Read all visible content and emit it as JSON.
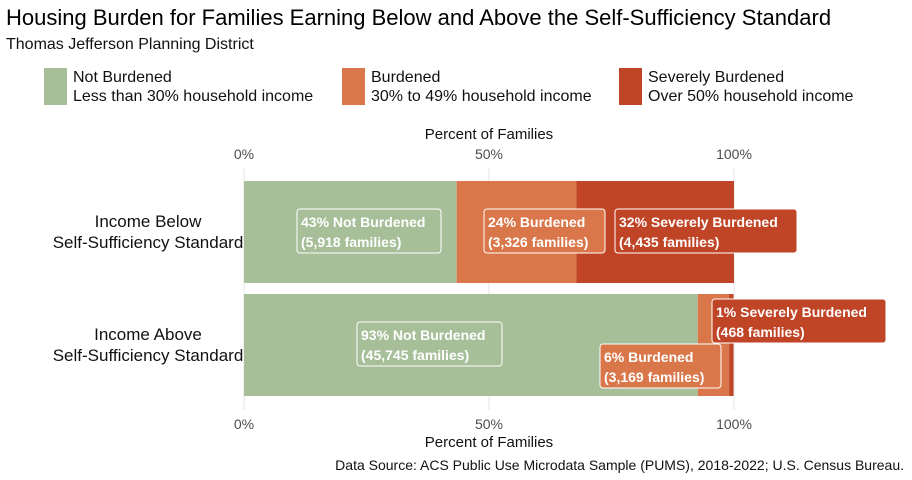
{
  "title": "Housing Burden for Families Earning Below and Above the Self-Sufficiency Standard",
  "subtitle": "Thomas Jefferson Planning District",
  "legend": [
    {
      "label": "Not Burdened",
      "sublabel": "Less than 30% household income",
      "color": "#a6bf98"
    },
    {
      "label": "Burdened",
      "sublabel": "30% to 49% household income",
      "color": "#d9774a"
    },
    {
      "label": "Severely Burdened",
      "sublabel": "Over 50% household income",
      "color": "#c04426"
    }
  ],
  "source": "Data Source: ACS Public Use Microdata Sample (PUMS), 2018-2022; U.S. Census Bureau.",
  "chart_data": {
    "type": "bar",
    "orientation": "horizontal",
    "stacked": true,
    "xlabel": "Percent of Families",
    "xlim": [
      0,
      100
    ],
    "ticks": [
      "0%",
      "50%",
      "100%"
    ],
    "tick_values": [
      0,
      50,
      100
    ],
    "categories": [
      [
        "Income Below",
        "Self-Sufficiency Standard"
      ],
      [
        "Income Above",
        "Self-Sufficiency Standard"
      ]
    ],
    "series": [
      {
        "name": "Not Burdened",
        "color": "#a6bf98",
        "values": [
          43.4,
          92.6
        ],
        "labels": [
          [
            "43% Not Burdened",
            "(5,918 families)"
          ],
          [
            "93% Not Burdened",
            "(45,745 families)"
          ]
        ]
      },
      {
        "name": "Burdened",
        "color": "#d9774a",
        "values": [
          24.4,
          6.4
        ],
        "labels": [
          [
            "24% Burdened",
            "(3,326 families)"
          ],
          [
            "6% Burdened",
            "(3,169 families)"
          ]
        ]
      },
      {
        "name": "Severely Burdened",
        "color": "#c04426",
        "values": [
          32.5,
          0.9
        ],
        "labels": [
          [
            "32% Severely Burdened",
            "(4,435 families)"
          ],
          [
            "1% Severely Burdened",
            "(468 families)"
          ]
        ]
      }
    ]
  }
}
